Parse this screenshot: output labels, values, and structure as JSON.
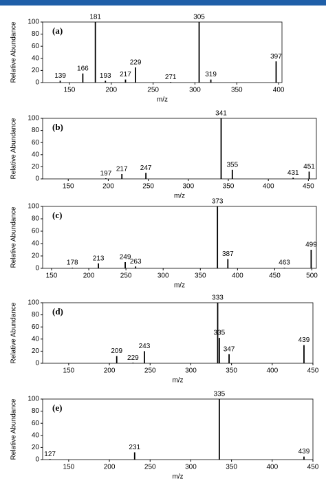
{
  "chart_data": [
    {
      "type": "bar",
      "panel_label": "(a)",
      "y_label": "Relative Abundance",
      "x_label": "m/z",
      "color": "#000000",
      "x": [
        139,
        166,
        181,
        193,
        217,
        229,
        271,
        305,
        319,
        397
      ],
      "values": [
        3,
        15,
        100,
        3,
        5,
        25,
        1,
        100,
        5,
        35
      ],
      "xlim": [
        118,
        404
      ],
      "xticks": [
        150,
        200,
        250,
        300,
        350,
        400
      ],
      "ylim": [
        0,
        100
      ],
      "yticks": [
        0,
        20,
        40,
        60,
        80,
        100
      ]
    },
    {
      "type": "bar",
      "panel_label": "(b)",
      "y_label": "Relative Abundance",
      "x_label": "m/z",
      "color": "#000000",
      "x": [
        197,
        217,
        247,
        341,
        355,
        431,
        451
      ],
      "values": [
        1,
        8,
        10,
        100,
        15,
        2,
        12
      ],
      "xlim": [
        118,
        460
      ],
      "xticks": [
        150,
        200,
        250,
        300,
        350,
        400,
        450
      ],
      "ylim": [
        0,
        100
      ],
      "yticks": [
        0,
        20,
        40,
        60,
        80,
        100
      ]
    },
    {
      "type": "bar",
      "panel_label": "(c)",
      "y_label": "Relative Abundance",
      "x_label": "m/z",
      "color": "#000000",
      "x": [
        178,
        213,
        249,
        263,
        373,
        387,
        463,
        499
      ],
      "values": [
        1,
        8,
        10,
        3,
        100,
        15,
        1,
        30
      ],
      "xlim": [
        138,
        506
      ],
      "xticks": [
        150,
        200,
        250,
        300,
        350,
        400,
        450,
        500
      ],
      "ylim": [
        0,
        100
      ],
      "yticks": [
        0,
        20,
        40,
        60,
        80,
        100
      ]
    },
    {
      "type": "bar",
      "panel_label": "(d)",
      "y_label": "Relative Abundance",
      "x_label": "m/z",
      "color": "#000000",
      "x": [
        209,
        229,
        243,
        333,
        335,
        347,
        439
      ],
      "values": [
        12,
        1,
        20,
        100,
        42,
        15,
        30
      ],
      "xlim": [
        118,
        450
      ],
      "xticks": [
        150,
        200,
        250,
        300,
        350,
        400,
        450
      ],
      "ylim": [
        0,
        100
      ],
      "yticks": [
        0,
        20,
        40,
        60,
        80,
        100
      ]
    },
    {
      "type": "bar",
      "panel_label": "(e)",
      "y_label": "Relative Abundance",
      "x_label": "m/z",
      "color": "#000000",
      "x": [
        127,
        231,
        335,
        439
      ],
      "values": [
        1,
        12,
        100,
        5
      ],
      "xlim": [
        118,
        450
      ],
      "xticks": [
        150,
        200,
        250,
        300,
        350,
        400,
        450
      ],
      "ylim": [
        0,
        100
      ],
      "yticks": [
        0,
        20,
        40,
        60,
        80,
        100
      ]
    }
  ]
}
